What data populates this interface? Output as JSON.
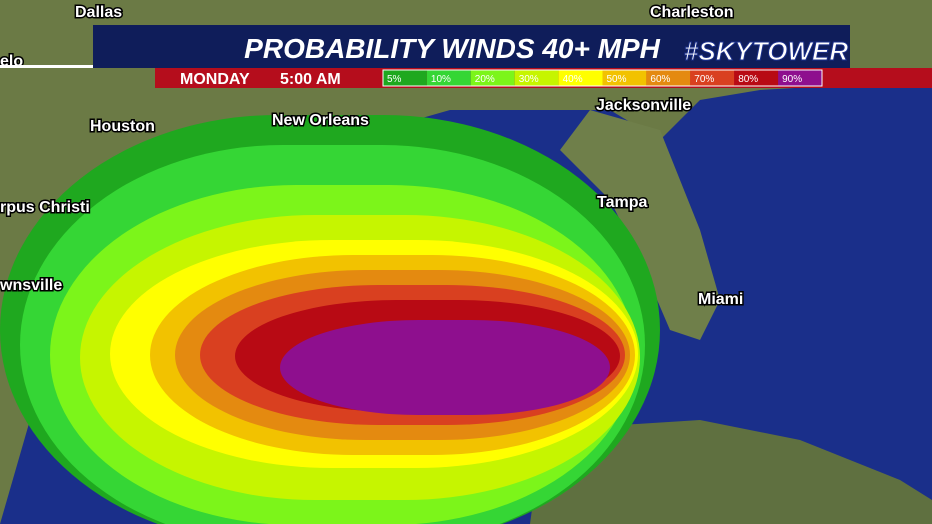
{
  "header": {
    "title": "PROBABILITY WINDS 40+ MPH",
    "brand": "#SKYTOWER",
    "day": "MONDAY",
    "time": "5:00 AM"
  },
  "legend": {
    "items": [
      {
        "label": "5%",
        "color": "#1fa81f"
      },
      {
        "label": "10%",
        "color": "#35d635"
      },
      {
        "label": "20%",
        "color": "#7cf51a"
      },
      {
        "label": "30%",
        "color": "#c6f500"
      },
      {
        "label": "40%",
        "color": "#ffff00"
      },
      {
        "label": "50%",
        "color": "#f2c200"
      },
      {
        "label": "60%",
        "color": "#e48a10"
      },
      {
        "label": "70%",
        "color": "#d94020"
      },
      {
        "label": "80%",
        "color": "#b80a14"
      },
      {
        "label": "90%",
        "color": "#8e0f8e"
      }
    ]
  },
  "cities": [
    {
      "label": "Dallas"
    },
    {
      "label": "Charleston"
    },
    {
      "label": "elo"
    },
    {
      "label": "Houston"
    },
    {
      "label": "New Orleans"
    },
    {
      "label": "Jacksonville"
    },
    {
      "label": "rpus Christi"
    },
    {
      "label": "Tampa"
    },
    {
      "label": "wnsville"
    },
    {
      "label": "Miami"
    }
  ]
}
